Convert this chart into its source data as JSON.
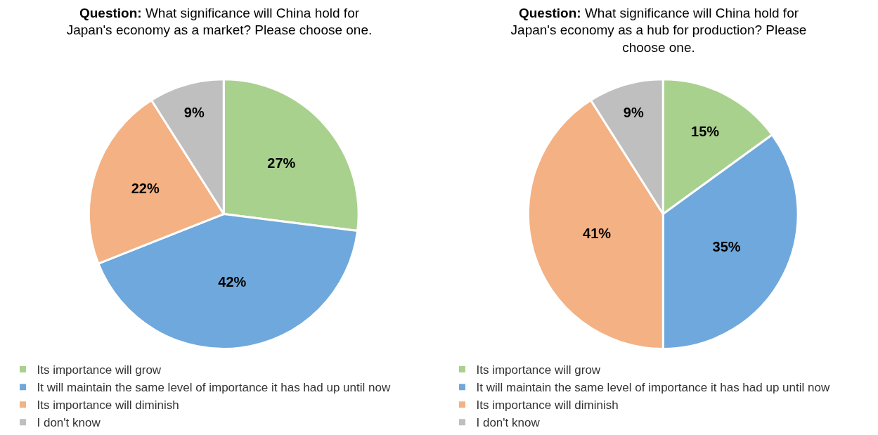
{
  "chart_data": [
    {
      "type": "pie",
      "title": "Question: What significance will China hold for Japan's economy as a market? Please choose one.",
      "categories": [
        "Its importance will grow",
        "It will maintain the same level of importance it has had up until now",
        "Its importance will diminish",
        "I don't know"
      ],
      "values": [
        27,
        42,
        22,
        9
      ],
      "value_labels": [
        "27%",
        "42%",
        "22%",
        "9%"
      ],
      "colors": [
        "#a9d18e",
        "#6fa8dc",
        "#f4b183",
        "#bfbfbf"
      ],
      "legend": "bottom"
    },
    {
      "type": "pie",
      "title": "Question: What significance will China hold for Japan's economy as a hub for production? Please choose one.",
      "categories": [
        "Its importance will grow",
        "It will maintain the same level of importance it has had up until now",
        "Its importance will diminish",
        "I don't know"
      ],
      "values": [
        15,
        35,
        41,
        9
      ],
      "value_labels": [
        "15%",
        "35%",
        "41%",
        "9%"
      ],
      "colors": [
        "#a9d18e",
        "#6fa8dc",
        "#f4b183",
        "#bfbfbf"
      ],
      "legend": "bottom"
    }
  ]
}
